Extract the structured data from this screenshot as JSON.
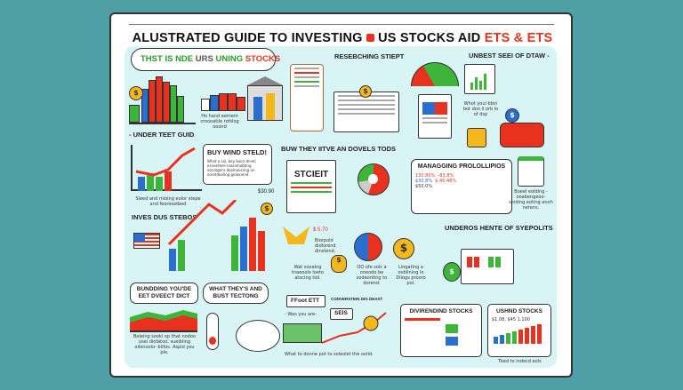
{
  "title": {
    "part1": "ALUSTRATED GUIDE TO INVESTING",
    "part2": "US STOCKS AID",
    "part3": "ETS & ETS"
  },
  "callout": {
    "w1": "THST IS",
    "w2": "NDE",
    "w3": "URS",
    "w4": "UNING",
    "w5": "STOCKS"
  },
  "sections": {
    "researching": "RESEBCHING STIEPT",
    "unbest": "UNBEST SEEI OF DTAW -",
    "under": "- UNDER TEET GUID",
    "under_note": "Ho hand eemem croooatile rofslog ooond",
    "buy": "BUY WIND STELD!",
    "buy_note": "What a sol, bey boiro dinet; esneeteen loosamobting oocotgern doomoeciing on ooretdeoling geaonend.",
    "chart_note": "Sleed and mioing eolor stepe and feoresetbed",
    "buw": "BUW THEY IITVE AN DOVELS TODS",
    "stcieit": "STCIEIT",
    "managing": "MANAGGING PROLOLLIPIOS",
    "managing_vals": [
      "130.80%",
      "-83.8%",
      "$30.8%",
      "$.40.48%",
      "$50.0%"
    ],
    "jar_note": "Boeel eolding -ooabengeoo- sinding eoting anoh nerens.",
    "what_your": "Whot youl bbin bot doo il orb lo of dsp",
    "inves": "INVES DUS STEBOS",
    "price1": "$30.90",
    "price2": "$ 5.70",
    "dividend_note": "Biorpoid didiorend dinstend,",
    "undeross": "UNDEROS HENTE OF SYEPOLITS",
    "bunding": "BUNDDING YOU'DE EET DVEECT DICT",
    "bunding_note": "Beleing sooki op that nodoo usel diofatoo; sueibling oilonoolo- bilfos. Aspid you ple.",
    "what_they": "WHAT THEY'S AND BUST TECTONG",
    "ffoot": "FFoot ETT",
    "was_you": "- Was you are-",
    "seis": "SEIS",
    "conv": "CONVERSTEIN DIG DEAST",
    "what_to": "What to donne pot to soleolet the ostid.",
    "divirend": "DIVIRENDIND STOCKS",
    "ushnd": "USHND STOCKS",
    "ushnd_vals": "$1.08, $45 1.100",
    "tked": "Tked to indecd eols",
    "wat": "Wat sooaing tnaeoolo loeto atocing tiol.",
    "oo": "OO ofe solc a oneodo be sodeonting to dorend.",
    "lingating": "Lingating a ooblining lo Diiogs prooro pol."
  },
  "colors": {
    "bg": "#4fa0a6",
    "panel": "#d8f4f5",
    "red": "#e8321f",
    "green": "#3db43a",
    "blue": "#2a6fd0",
    "gold": "#f4b81d"
  },
  "icons": [
    "dollar-coin-icon",
    "bank-building-icon",
    "clipboard-icon",
    "gauge-icon",
    "piggy-bank-icon",
    "us-flag-icon",
    "money-bag-icon",
    "jar-icon",
    "donut-chart-icon",
    "butterfly-icon"
  ]
}
